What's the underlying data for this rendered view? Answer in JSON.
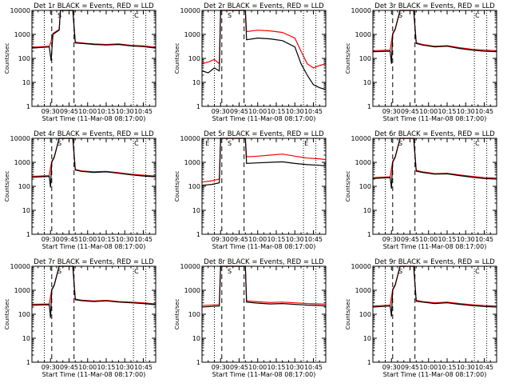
{
  "figure": {
    "xlabel": "Start Time (11-Mar-08 08:17:00)",
    "ylabel": "Counts/sec",
    "x_ticks": [
      "09:30",
      "09:45",
      "10:00",
      "10:15",
      "10:30",
      "10:45"
    ],
    "y_ticks": [
      "1",
      "10",
      "100",
      "1000",
      "10000"
    ],
    "colors": {
      "events": "#000000",
      "lld": "#ff0000",
      "axes": "#000000"
    }
  },
  "chart_data": [
    {
      "type": "line",
      "title": "Det 1r BLACK = Events, RED = LLD",
      "xlabel": "Start Time (11-Mar-08 08:17:00)",
      "ylabel": "Counts/sec",
      "x_unit": "minutes after 09:15",
      "xlim": [
        0,
        100
      ],
      "ylim": [
        1,
        10000
      ],
      "yscale": "log",
      "series": [
        {
          "name": "Events",
          "color": "#000000",
          "x": [
            0,
            14,
            15.5,
            17,
            22,
            23,
            33,
            35,
            45,
            50,
            60,
            70,
            80,
            90,
            100
          ],
          "y": [
            270,
            300,
            80,
            1000,
            1500,
            10000,
            10000,
            440,
            400,
            380,
            360,
            380,
            330,
            310,
            270
          ]
        },
        {
          "name": "LLD",
          "color": "#ff0000",
          "x": [
            0,
            14,
            15.5,
            17,
            22,
            23,
            33,
            35,
            45,
            50,
            60,
            70,
            80,
            90,
            100
          ],
          "y": [
            290,
            320,
            500,
            1100,
            1600,
            10000,
            10000,
            470,
            420,
            400,
            380,
            400,
            350,
            330,
            290
          ]
        }
      ],
      "annotations": {
        "letters": [
          "S",
          "C"
        ]
      }
    },
    {
      "type": "line",
      "title": "Det 2r BLACK = Events, RED = LLD",
      "xlabel": "Start Time (11-Mar-08 08:17:00)",
      "ylabel": "Counts/sec",
      "x_unit": "minutes after 09:15",
      "xlim": [
        0,
        100
      ],
      "ylim": [
        1,
        10000
      ],
      "yscale": "log",
      "series": [
        {
          "name": "Events",
          "color": "#000000",
          "x": [
            0,
            5,
            10,
            14,
            15,
            20,
            22,
            35,
            36,
            45,
            55,
            65,
            75,
            80,
            85,
            90,
            95,
            100
          ],
          "y": [
            30,
            25,
            40,
            30,
            10000,
            10000,
            10000,
            10000,
            600,
            700,
            650,
            550,
            300,
            60,
            20,
            8,
            6,
            5
          ]
        },
        {
          "name": "LLD",
          "color": "#ff0000",
          "x": [
            0,
            5,
            10,
            14,
            15,
            20,
            22,
            35,
            36,
            45,
            55,
            65,
            75,
            80,
            85,
            90,
            95,
            100
          ],
          "y": [
            60,
            70,
            90,
            60,
            10000,
            10000,
            10000,
            10000,
            1300,
            1500,
            1400,
            1200,
            700,
            200,
            60,
            40,
            50,
            60
          ]
        }
      ],
      "annotations": {
        "letters": [
          "S"
        ]
      }
    },
    {
      "type": "line",
      "title": "Det 3r BLACK = Events, RED = LLD",
      "xlabel": "Start Time (11-Mar-08 08:17:00)",
      "ylabel": "Counts/sec",
      "x_unit": "minutes after 09:15",
      "xlim": [
        0,
        100
      ],
      "ylim": [
        1,
        10000
      ],
      "yscale": "log",
      "series": [
        {
          "name": "Events",
          "color": "#000000",
          "x": [
            0,
            14,
            15,
            16,
            18,
            22,
            23,
            33,
            35,
            40,
            50,
            60,
            70,
            80,
            90,
            100
          ],
          "y": [
            190,
            200,
            60,
            1000,
            1600,
            10000,
            10000,
            10000,
            420,
            360,
            300,
            320,
            260,
            220,
            200,
            190
          ]
        },
        {
          "name": "LLD",
          "color": "#ff0000",
          "x": [
            0,
            14,
            15,
            16,
            18,
            22,
            23,
            33,
            35,
            40,
            50,
            60,
            70,
            80,
            90,
            100
          ],
          "y": [
            210,
            220,
            500,
            1100,
            1700,
            10000,
            10000,
            10000,
            450,
            380,
            320,
            340,
            280,
            240,
            220,
            210
          ]
        }
      ],
      "annotations": {
        "letters": [
          "S",
          "C"
        ]
      }
    },
    {
      "type": "line",
      "title": "Det 4r BLACK = Events, RED = LLD",
      "xlabel": "Start Time (11-Mar-08 08:17:00)",
      "ylabel": "Counts/sec",
      "x_unit": "minutes after 09:15",
      "xlim": [
        0,
        100
      ],
      "ylim": [
        1,
        10000
      ],
      "yscale": "log",
      "series": [
        {
          "name": "Events",
          "color": "#000000",
          "x": [
            0,
            14,
            15,
            16,
            18,
            22,
            23,
            33,
            35,
            40,
            50,
            60,
            70,
            80,
            90,
            100
          ],
          "y": [
            240,
            260,
            90,
            1000,
            1600,
            10000,
            10000,
            10000,
            480,
            420,
            380,
            400,
            350,
            300,
            270,
            250
          ]
        },
        {
          "name": "LLD",
          "color": "#ff0000",
          "x": [
            0,
            14,
            15,
            16,
            18,
            22,
            23,
            33,
            35,
            40,
            50,
            60,
            70,
            80,
            90,
            100
          ],
          "y": [
            260,
            280,
            600,
            1100,
            1700,
            10000,
            10000,
            10000,
            500,
            440,
            400,
            420,
            370,
            320,
            290,
            270
          ]
        }
      ],
      "annotations": {
        "letters": [
          "S",
          "C"
        ]
      }
    },
    {
      "type": "line",
      "title": "Det 5r BLACK = Events, RED = LLD",
      "xlabel": "Start Time (11-Mar-08 08:17:00)",
      "ylabel": "Counts/sec",
      "x_unit": "minutes after 09:15",
      "xlim": [
        0,
        100
      ],
      "ylim": [
        1,
        10000
      ],
      "yscale": "log",
      "series": [
        {
          "name": "Events",
          "color": "#000000",
          "x": [
            0,
            8,
            14,
            15,
            20,
            22,
            35,
            36,
            45,
            55,
            65,
            75,
            85,
            95,
            100
          ],
          "y": [
            110,
            120,
            140,
            10000,
            10000,
            10000,
            10000,
            900,
            950,
            1000,
            1050,
            900,
            800,
            750,
            700
          ]
        },
        {
          "name": "LLD",
          "color": "#ff0000",
          "x": [
            0,
            8,
            14,
            15,
            20,
            22,
            35,
            36,
            45,
            55,
            65,
            75,
            85,
            95,
            100
          ],
          "y": [
            150,
            170,
            200,
            10000,
            10000,
            10000,
            10000,
            1700,
            1800,
            2000,
            2200,
            1800,
            1500,
            1400,
            1300
          ]
        }
      ],
      "annotations": {
        "letters": [
          "E",
          "S",
          "E"
        ]
      }
    },
    {
      "type": "line",
      "title": "Det 6r BLACK = Events, RED = LLD",
      "xlabel": "Start Time (11-Mar-08 08:17:00)",
      "ylabel": "Counts/sec",
      "x_unit": "minutes after 09:15",
      "xlim": [
        0,
        100
      ],
      "ylim": [
        1,
        10000
      ],
      "yscale": "log",
      "series": [
        {
          "name": "Events",
          "color": "#000000",
          "x": [
            0,
            14,
            15,
            16,
            18,
            22,
            23,
            33,
            35,
            40,
            50,
            60,
            70,
            80,
            90,
            100
          ],
          "y": [
            210,
            230,
            80,
            1000,
            1600,
            10000,
            10000,
            10000,
            430,
            380,
            320,
            330,
            280,
            240,
            210,
            200
          ]
        },
        {
          "name": "LLD",
          "color": "#ff0000",
          "x": [
            0,
            14,
            15,
            16,
            18,
            22,
            23,
            33,
            35,
            40,
            50,
            60,
            70,
            80,
            90,
            100
          ],
          "y": [
            230,
            250,
            550,
            1100,
            1700,
            10000,
            10000,
            10000,
            460,
            400,
            340,
            350,
            300,
            260,
            230,
            220
          ]
        }
      ],
      "annotations": {
        "letters": [
          "S",
          "C"
        ]
      }
    },
    {
      "type": "line",
      "title": "Det 7r BLACK = Events, RED = LLD",
      "xlabel": "Start Time (11-Mar-08 08:17:00)",
      "ylabel": "Counts/sec",
      "x_unit": "minutes after 09:15",
      "xlim": [
        0,
        100
      ],
      "ylim": [
        1,
        10000
      ],
      "yscale": "log",
      "series": [
        {
          "name": "Events",
          "color": "#000000",
          "x": [
            0,
            14,
            15,
            16,
            18,
            22,
            23,
            33,
            35,
            40,
            50,
            60,
            70,
            80,
            90,
            100
          ],
          "y": [
            240,
            250,
            70,
            1000,
            1600,
            10000,
            10000,
            10000,
            400,
            370,
            340,
            360,
            320,
            300,
            280,
            250
          ]
        },
        {
          "name": "LLD",
          "color": "#ff0000",
          "x": [
            0,
            14,
            15,
            16,
            18,
            22,
            23,
            33,
            35,
            40,
            50,
            60,
            70,
            80,
            90,
            100
          ],
          "y": [
            260,
            270,
            550,
            1100,
            1700,
            10000,
            10000,
            10000,
            430,
            390,
            360,
            380,
            340,
            320,
            300,
            270
          ]
        }
      ],
      "annotations": {
        "letters": [
          "S",
          "C"
        ]
      }
    },
    {
      "type": "line",
      "title": "Det 8r BLACK = Events, RED = LLD",
      "xlabel": "Start Time (11-Mar-08 08:17:00)",
      "ylabel": "Counts/sec",
      "x_unit": "minutes after 09:15",
      "xlim": [
        0,
        100
      ],
      "ylim": [
        1,
        10000
      ],
      "yscale": "log",
      "series": [
        {
          "name": "Events",
          "color": "#000000",
          "x": [
            0,
            14,
            15,
            20,
            22,
            35,
            36,
            45,
            55,
            65,
            75,
            85,
            95,
            100
          ],
          "y": [
            200,
            220,
            10000,
            10000,
            10000,
            10000,
            320,
            290,
            270,
            280,
            260,
            240,
            230,
            220
          ]
        },
        {
          "name": "LLD",
          "color": "#ff0000",
          "x": [
            0,
            14,
            15,
            20,
            22,
            35,
            36,
            45,
            55,
            65,
            75,
            85,
            95,
            100
          ],
          "y": [
            230,
            250,
            10000,
            10000,
            10000,
            10000,
            360,
            330,
            310,
            320,
            300,
            280,
            270,
            260
          ]
        }
      ],
      "annotations": {
        "letters": [
          "S"
        ]
      }
    },
    {
      "type": "line",
      "title": "Det 9r BLACK = Events, RED = LLD",
      "xlabel": "Start Time (11-Mar-08 08:17:00)",
      "ylabel": "Counts/sec",
      "x_unit": "minutes after 09:15",
      "xlim": [
        0,
        100
      ],
      "ylim": [
        1,
        10000
      ],
      "yscale": "log",
      "series": [
        {
          "name": "Events",
          "color": "#000000",
          "x": [
            0,
            14,
            15,
            16,
            18,
            22,
            23,
            33,
            35,
            40,
            50,
            60,
            70,
            80,
            90,
            100
          ],
          "y": [
            200,
            220,
            80,
            1000,
            1600,
            10000,
            10000,
            10000,
            350,
            320,
            280,
            300,
            260,
            230,
            210,
            200
          ]
        },
        {
          "name": "LLD",
          "color": "#ff0000",
          "x": [
            0,
            14,
            15,
            16,
            18,
            22,
            23,
            33,
            35,
            40,
            50,
            60,
            70,
            80,
            90,
            100
          ],
          "y": [
            220,
            240,
            500,
            1100,
            1700,
            10000,
            10000,
            10000,
            380,
            340,
            300,
            320,
            280,
            250,
            230,
            220
          ]
        }
      ],
      "annotations": {
        "letters": [
          "S",
          "C"
        ]
      }
    }
  ]
}
